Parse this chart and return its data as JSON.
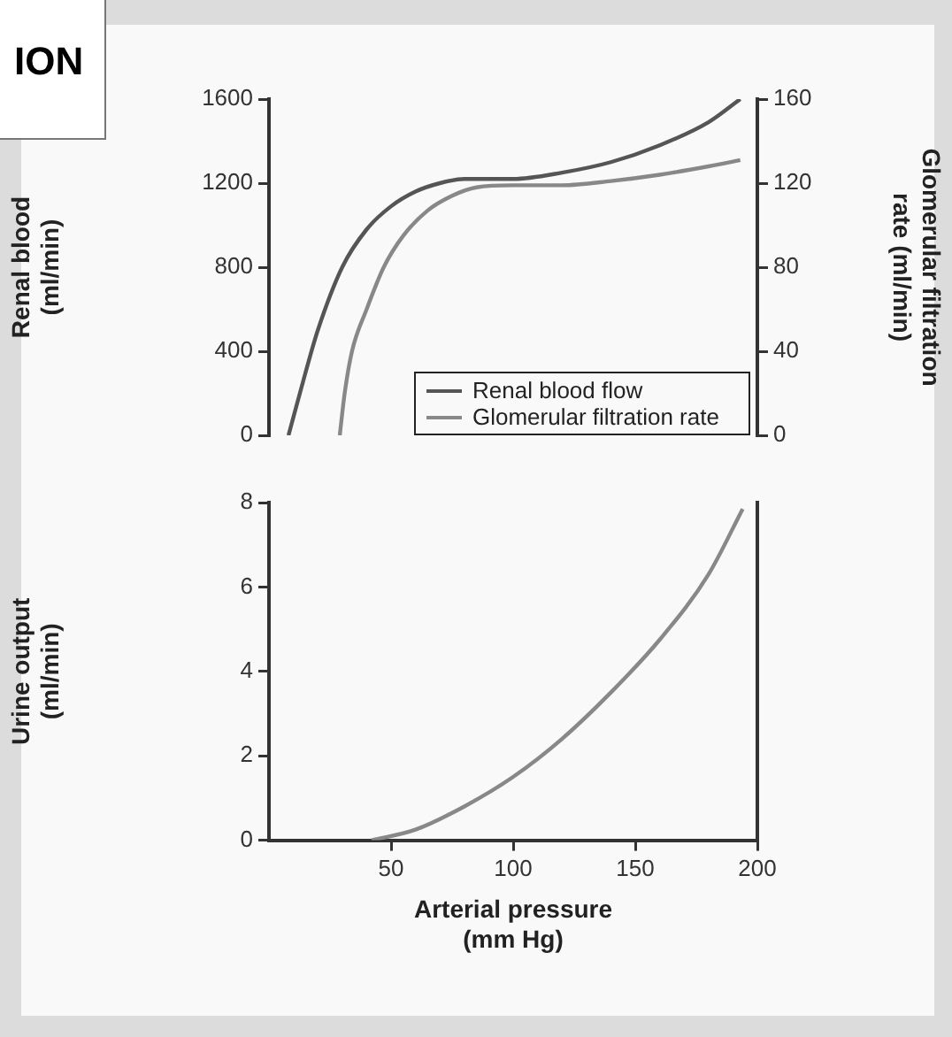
{
  "chart_data": [
    {
      "type": "line",
      "title": "ION",
      "ylabel": "Renal blood\n(ml/min)",
      "y2label": "Glomerular filtration\nrate (ml/min)",
      "xlim": [
        0,
        200
      ],
      "ylim": [
        0,
        1600
      ],
      "yticks": [
        0,
        400,
        800,
        1200,
        1600
      ],
      "y2lim": [
        0,
        160
      ],
      "y2ticks": [
        0,
        40,
        80,
        120,
        160
      ],
      "tick_labels": "y",
      "legend": "bottom right",
      "marker": "none",
      "series": [
        {
          "name": "Renal blood flow",
          "color": "#555555",
          "x": [
            8,
            15,
            20,
            30,
            40,
            50,
            60,
            70,
            80,
            90,
            100,
            120,
            140,
            160,
            180,
            193
          ],
          "values": [
            0,
            300,
            500,
            800,
            980,
            1090,
            1160,
            1200,
            1220,
            1220,
            1220,
            1250,
            1300,
            1380,
            1490,
            1600
          ]
        },
        {
          "name": "Glomerular filtration rate",
          "color": "#888888",
          "axis": "y2",
          "x": [
            29,
            31,
            34,
            40,
            47,
            55,
            65,
            75,
            85,
            100,
            120,
            140,
            160,
            180,
            193
          ],
          "values": [
            0,
            20,
            40,
            60,
            80,
            95,
            107,
            114,
            118,
            119,
            119,
            121,
            124,
            128,
            131
          ]
        }
      ]
    },
    {
      "type": "line",
      "xlabel": "Arterial pressure\n(mm Hg)",
      "ylabel": "Urine output\n(ml/min)",
      "xlim": [
        0,
        200
      ],
      "xticks": [
        50,
        100,
        150,
        200
      ],
      "ylim": [
        0,
        8
      ],
      "yticks": [
        0,
        2,
        4,
        6,
        8
      ],
      "marker": "none",
      "series": [
        {
          "color": "#888888",
          "x": [
            42,
            60,
            80,
            100,
            120,
            140,
            160,
            180,
            194
          ],
          "values": [
            0,
            0.25,
            0.8,
            1.5,
            2.4,
            3.5,
            4.75,
            6.3,
            7.85
          ]
        }
      ]
    }
  ]
}
